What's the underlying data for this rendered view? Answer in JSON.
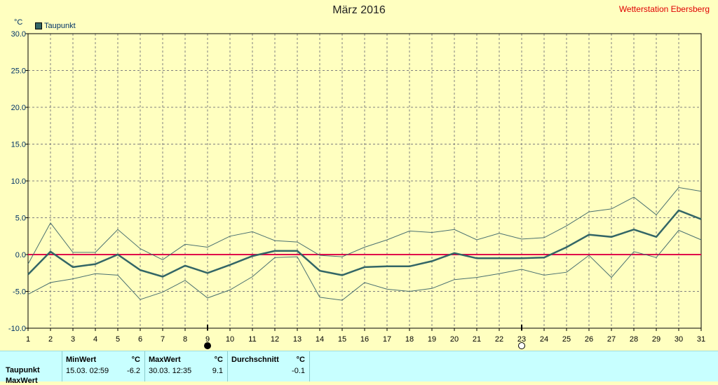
{
  "header": {
    "title": "März 2016",
    "station": "Wetterstation Ebersberg",
    "unit": "°C"
  },
  "legend": {
    "label": "Taupunkt",
    "color": "#336666"
  },
  "colors": {
    "background": "#FFFFC0",
    "main_line": "#336666",
    "minmax_line": "#4A7070",
    "zero_line": "#E0004A",
    "grid": "#808080",
    "table_bg": "#C8FFFF"
  },
  "chart_data": {
    "type": "line",
    "title": "März 2016",
    "ylabel": "°C",
    "ylim": [
      -10,
      30
    ],
    "yticks": [
      "-10.0",
      "-5.0",
      "0.0",
      "5.0",
      "10.0",
      "15.0",
      "20.0",
      "25.0",
      "30.0"
    ],
    "x": [
      1,
      2,
      3,
      4,
      5,
      6,
      7,
      8,
      9,
      10,
      11,
      12,
      13,
      14,
      15,
      16,
      17,
      18,
      19,
      20,
      21,
      22,
      23,
      24,
      25,
      26,
      27,
      28,
      29,
      30,
      31
    ],
    "grid": true,
    "legend_position": "top-left",
    "markers": [
      {
        "day": 9,
        "symbol": "full-moon-filled"
      },
      {
        "day": 23,
        "symbol": "full-moon-empty"
      }
    ],
    "series": [
      {
        "name": "Taupunkt",
        "role": "mean",
        "values": [
          -2.7,
          0.4,
          -1.7,
          -1.3,
          0.0,
          -2.1,
          -3.0,
          -1.5,
          -2.5,
          -1.4,
          -0.2,
          0.5,
          0.5,
          -2.2,
          -2.8,
          -1.7,
          -1.6,
          -1.6,
          -0.9,
          0.2,
          -0.5,
          -0.5,
          -0.5,
          -0.4,
          1.0,
          2.7,
          2.4,
          3.4,
          2.4,
          6.0,
          4.8
        ]
      },
      {
        "role": "max",
        "values": [
          -1.3,
          4.3,
          0.3,
          0.3,
          3.4,
          0.8,
          -0.7,
          1.4,
          1.0,
          2.5,
          3.1,
          1.9,
          1.7,
          -0.1,
          -0.3,
          1.0,
          2.0,
          3.2,
          3.0,
          3.4,
          2.0,
          2.9,
          2.1,
          2.3,
          3.9,
          5.8,
          6.2,
          7.8,
          5.4,
          9.1,
          8.6
        ]
      },
      {
        "role": "min",
        "values": [
          -5.4,
          -3.8,
          -3.3,
          -2.6,
          -2.8,
          -6.1,
          -5.1,
          -3.5,
          -5.9,
          -4.8,
          -3.0,
          -0.4,
          -0.3,
          -5.8,
          -6.2,
          -3.8,
          -4.7,
          -5.0,
          -4.6,
          -3.4,
          -3.1,
          -2.6,
          -2.0,
          -2.8,
          -2.4,
          -0.1,
          -3.1,
          0.4,
          -0.4,
          3.3,
          2.0
        ]
      }
    ]
  },
  "table": {
    "row_label": "Taupunkt",
    "next_row_label": "MaxWert",
    "col_min": "MinWert",
    "col_max": "MaxWert",
    "col_avg": "Durchschnitt",
    "unit": "°C",
    "min_datetime": "15.03.  02:59",
    "min_value": "-6.2",
    "max_datetime": "30.03.  12:35",
    "max_value": "9.1",
    "avg_value": "-0.1"
  }
}
